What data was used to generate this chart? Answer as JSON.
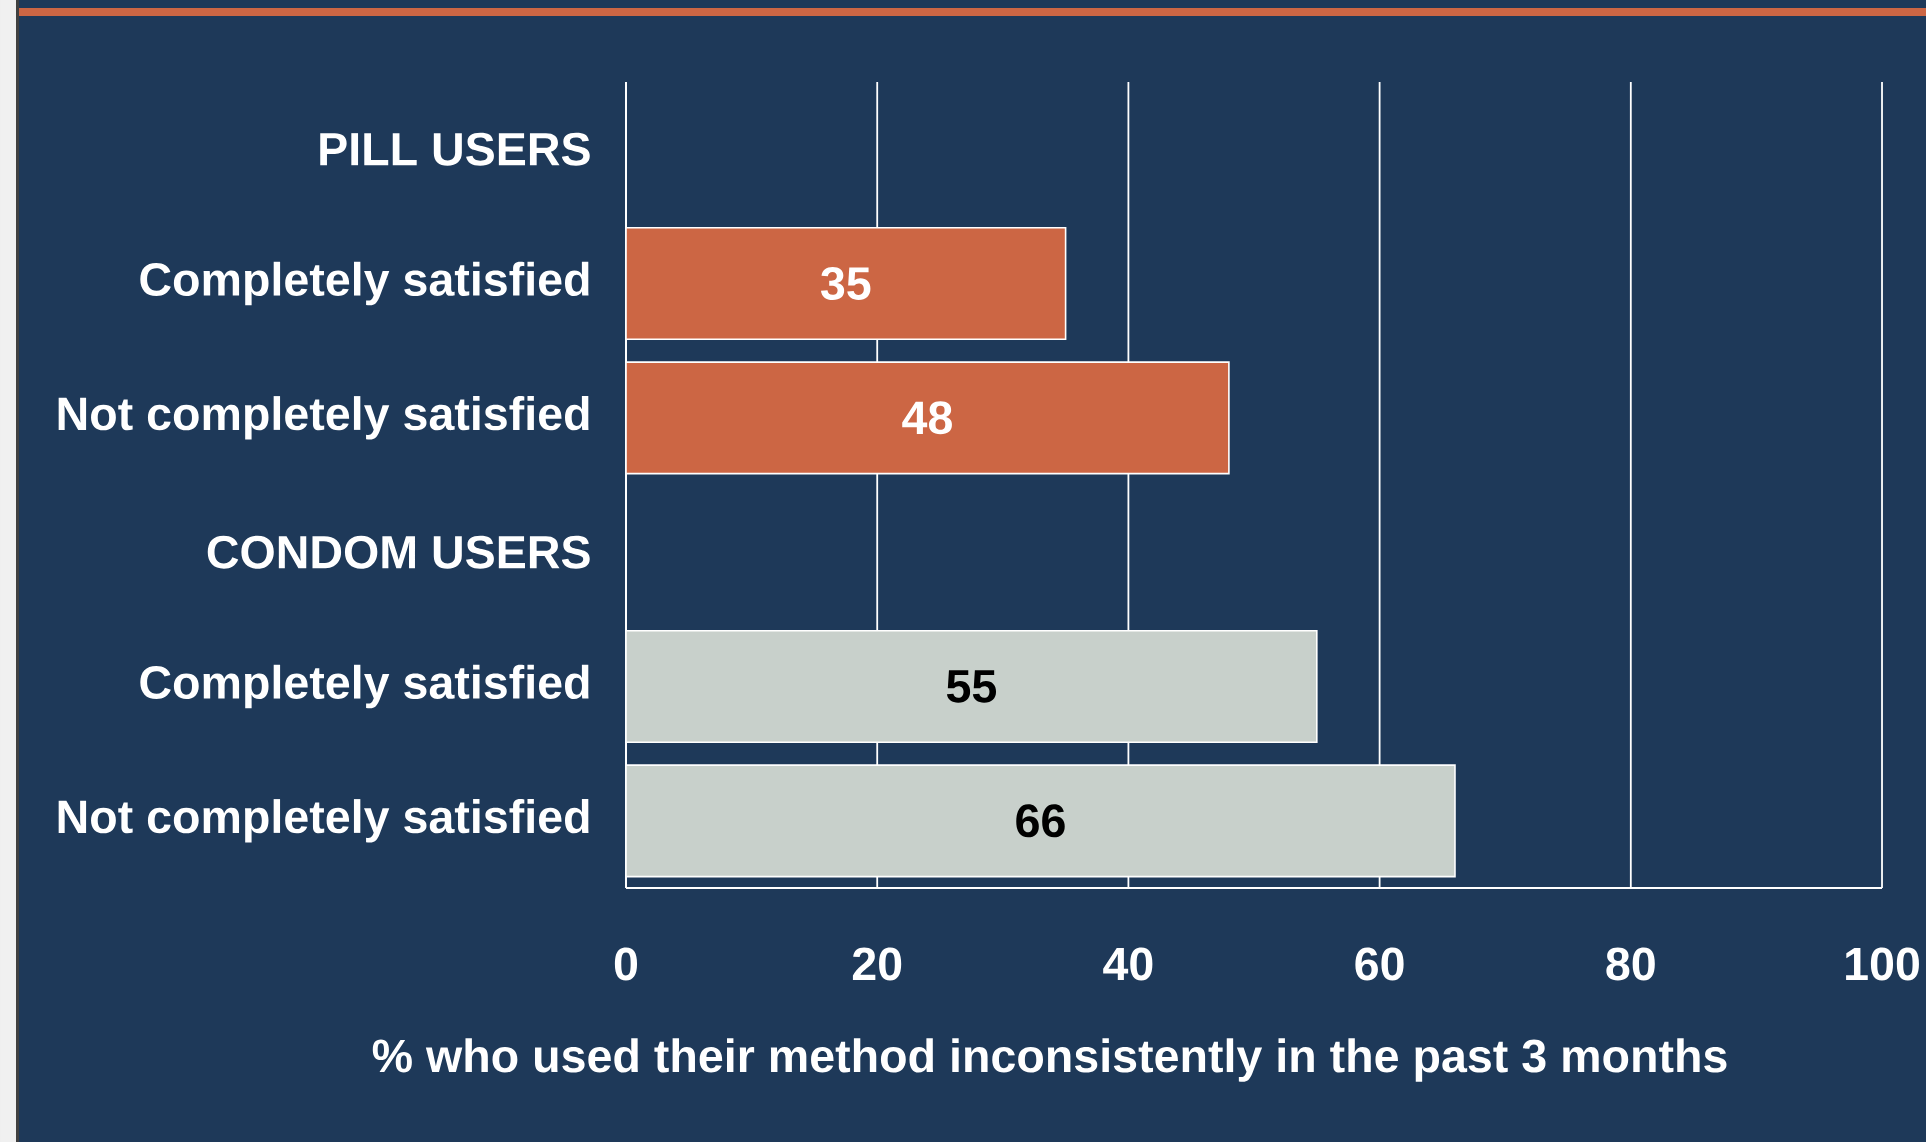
{
  "chart_data": {
    "type": "bar",
    "orientation": "horizontal",
    "categories": [
      "PILL USERS",
      "Completely satisfied",
      "Not completely satisfied",
      "CONDOM USERS",
      "Completely satisfied",
      "Not completely satisfied"
    ],
    "values": [
      null,
      35,
      48,
      null,
      55,
      66
    ],
    "colors": [
      null,
      "#cc6644",
      "#cc6644",
      null,
      "#c8d0cb",
      "#c8d0cb"
    ],
    "xlabel": "% who used their method inconsistently in the past 3 months",
    "xlim": [
      0,
      100
    ],
    "xticks": [
      0,
      20,
      40,
      60,
      80,
      100
    ],
    "grid": "x",
    "data_labels": true
  }
}
